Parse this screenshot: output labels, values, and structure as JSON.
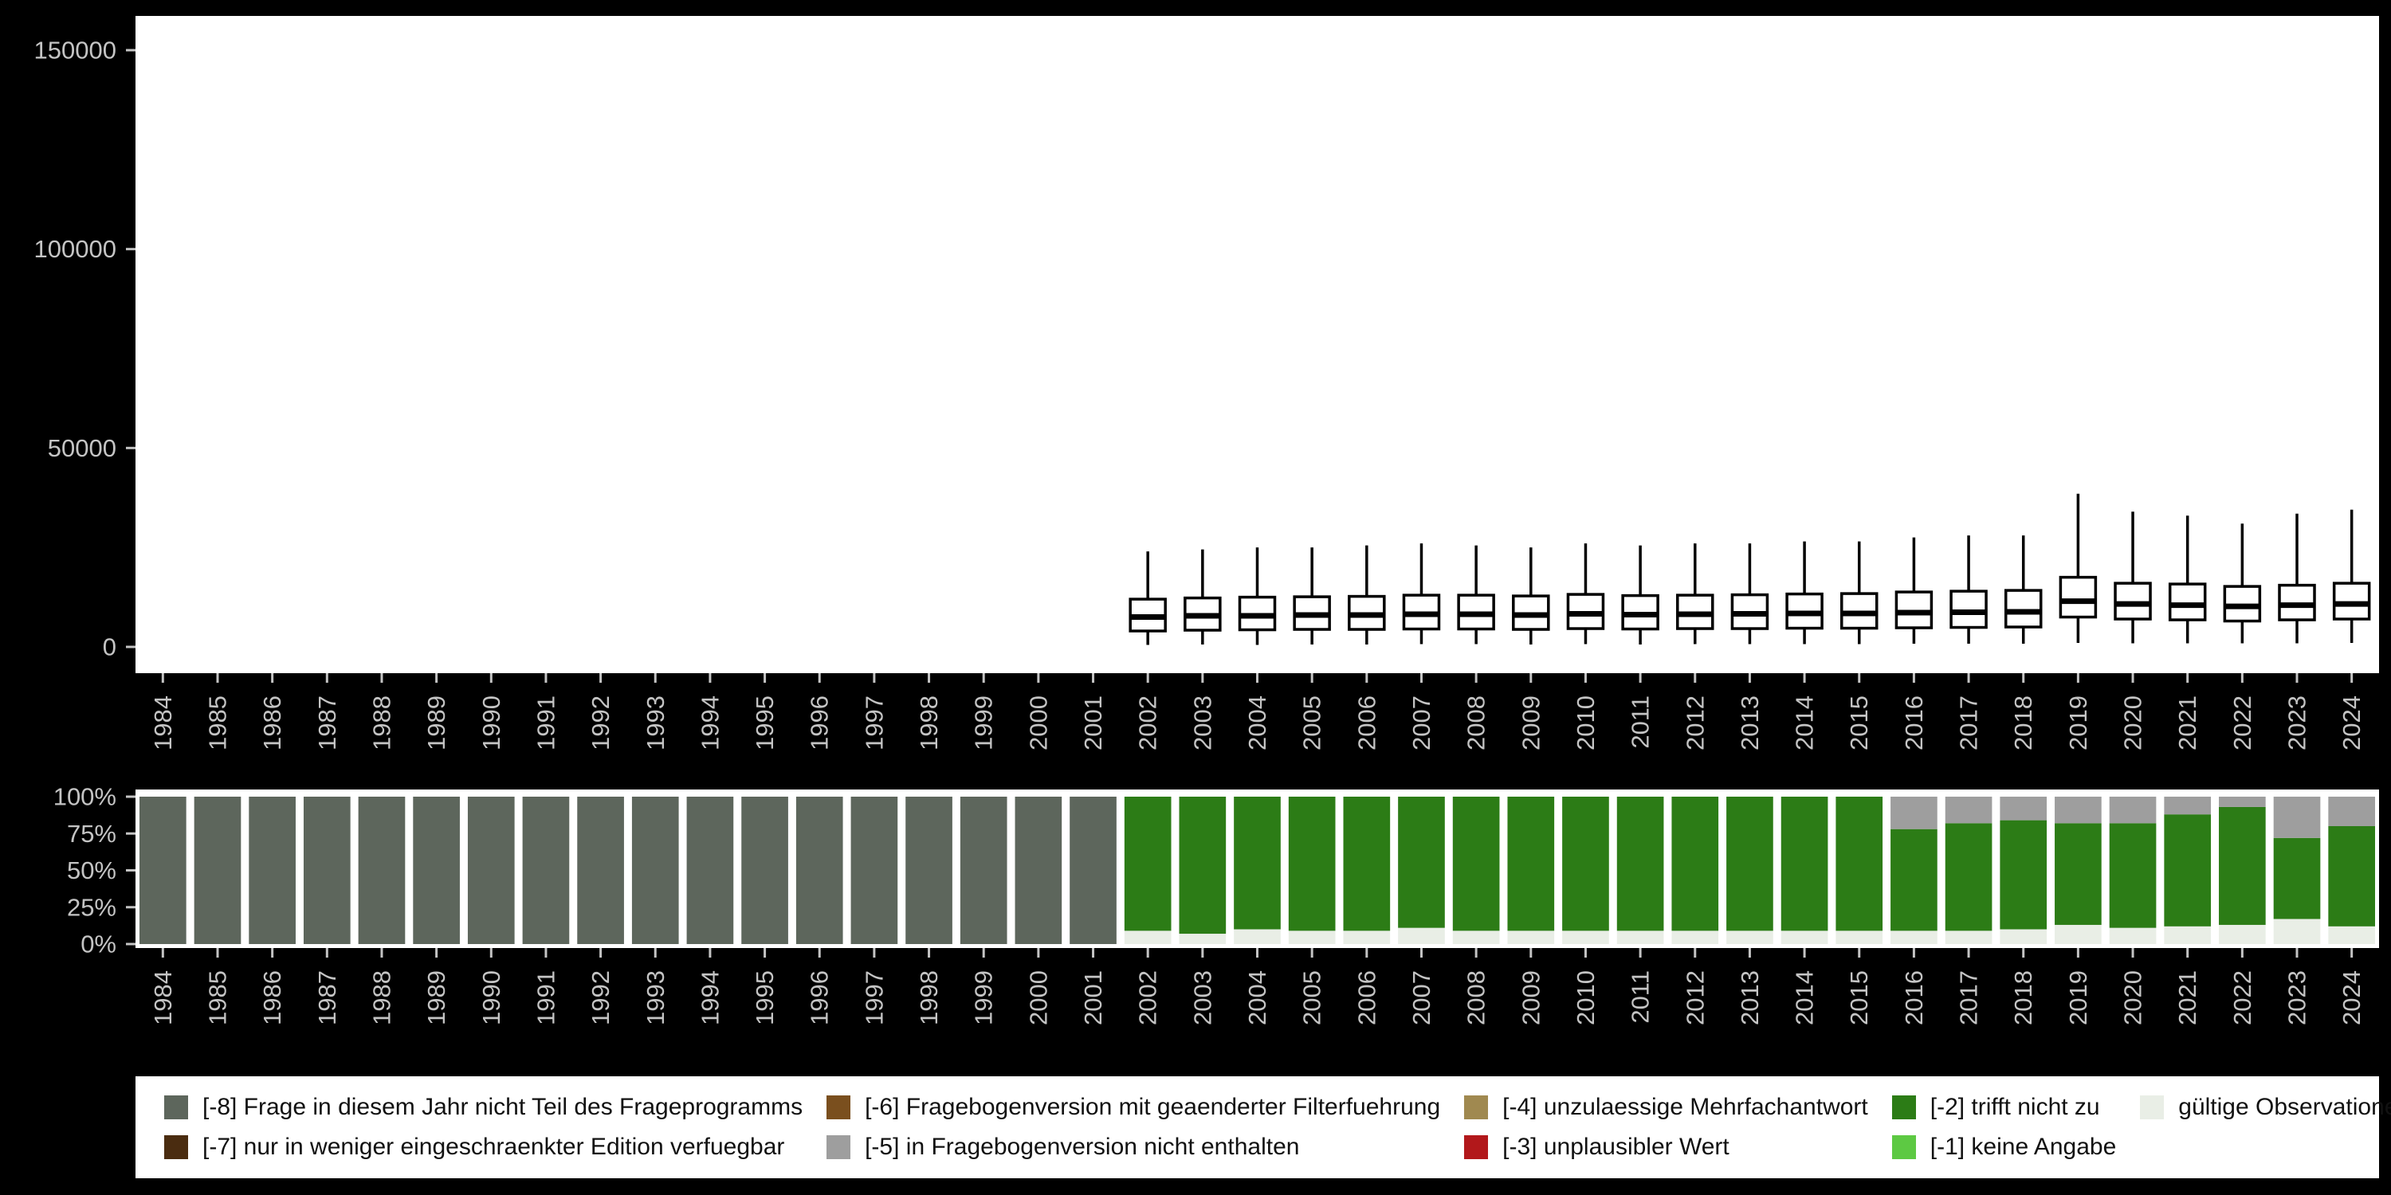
{
  "style": {
    "page_background": "#000000",
    "plot_background": "#ffffff",
    "axis_text_color": "#c4c4c4",
    "box_stroke_color": "#000000",
    "box_fill_color": "#ffffff"
  },
  "chart_data": [
    {
      "type": "boxplot",
      "title": "",
      "xlabel": "",
      "ylabel": "",
      "ylim": [
        0,
        160000
      ],
      "yticks": [
        {
          "value": 0,
          "label": "0"
        },
        {
          "value": 50000,
          "label": "50000"
        },
        {
          "value": 100000,
          "label": "100000"
        },
        {
          "value": 150000,
          "label": "150000"
        }
      ],
      "x": [
        "1984",
        "1985",
        "1986",
        "1987",
        "1988",
        "1989",
        "1990",
        "1991",
        "1992",
        "1993",
        "1994",
        "1995",
        "1996",
        "1997",
        "1998",
        "1999",
        "2000",
        "2001",
        "2002",
        "2003",
        "2004",
        "2005",
        "2006",
        "2007",
        "2008",
        "2009",
        "2010",
        "2011",
        "2012",
        "2013",
        "2014",
        "2015",
        "2016",
        "2017",
        "2018",
        "2019",
        "2020",
        "2021",
        "2022",
        "2023",
        "2024"
      ],
      "boxes": [
        null,
        null,
        null,
        null,
        null,
        null,
        null,
        null,
        null,
        null,
        null,
        null,
        null,
        null,
        null,
        null,
        null,
        null,
        {
          "low": 500,
          "q1": 4000,
          "med": 7500,
          "q3": 12000,
          "high": 24000
        },
        {
          "low": 600,
          "q1": 4200,
          "med": 7800,
          "q3": 12300,
          "high": 24500
        },
        {
          "low": 500,
          "q1": 4300,
          "med": 7800,
          "q3": 12500,
          "high": 25000
        },
        {
          "low": 600,
          "q1": 4400,
          "med": 8000,
          "q3": 12600,
          "high": 25000
        },
        {
          "low": 600,
          "q1": 4400,
          "med": 8000,
          "q3": 12700,
          "high": 25500
        },
        {
          "low": 700,
          "q1": 4500,
          "med": 8200,
          "q3": 13000,
          "high": 26000
        },
        {
          "low": 700,
          "q1": 4500,
          "med": 8200,
          "q3": 13000,
          "high": 25500
        },
        {
          "low": 600,
          "q1": 4400,
          "med": 8000,
          "q3": 12800,
          "high": 25000
        },
        {
          "low": 700,
          "q1": 4600,
          "med": 8300,
          "q3": 13200,
          "high": 26000
        },
        {
          "low": 600,
          "q1": 4500,
          "med": 8100,
          "q3": 12900,
          "high": 25500
        },
        {
          "low": 700,
          "q1": 4600,
          "med": 8200,
          "q3": 13000,
          "high": 26000
        },
        {
          "low": 700,
          "q1": 4600,
          "med": 8300,
          "q3": 13100,
          "high": 26000
        },
        {
          "low": 700,
          "q1": 4700,
          "med": 8400,
          "q3": 13300,
          "high": 26500
        },
        {
          "low": 700,
          "q1": 4700,
          "med": 8400,
          "q3": 13400,
          "high": 26500
        },
        {
          "low": 800,
          "q1": 4800,
          "med": 8600,
          "q3": 13800,
          "high": 27500
        },
        {
          "low": 800,
          "q1": 4900,
          "med": 8700,
          "q3": 14000,
          "high": 28000
        },
        {
          "low": 800,
          "q1": 5000,
          "med": 8800,
          "q3": 14200,
          "high": 28000
        },
        {
          "low": 1000,
          "q1": 7500,
          "med": 11500,
          "q3": 17500,
          "high": 38500
        },
        {
          "low": 900,
          "q1": 7000,
          "med": 10800,
          "q3": 16000,
          "high": 34000
        },
        {
          "low": 900,
          "q1": 6800,
          "med": 10500,
          "q3": 15800,
          "high": 33000
        },
        {
          "low": 900,
          "q1": 6500,
          "med": 10200,
          "q3": 15200,
          "high": 31000
        },
        {
          "low": 900,
          "q1": 6800,
          "med": 10500,
          "q3": 15500,
          "high": 33500
        },
        {
          "low": 1000,
          "q1": 7000,
          "med": 10800,
          "q3": 16000,
          "high": 34500
        }
      ]
    },
    {
      "type": "stacked_bar_percent",
      "title": "",
      "xlabel": "",
      "ylabel": "",
      "ylim": [
        0,
        100
      ],
      "yticks": [
        {
          "value": 0,
          "label": "0%"
        },
        {
          "value": 25,
          "label": "25%"
        },
        {
          "value": 50,
          "label": "50%"
        },
        {
          "value": 75,
          "label": "75%"
        },
        {
          "value": 100,
          "label": "100%"
        }
      ],
      "categories": [
        "1984",
        "1985",
        "1986",
        "1987",
        "1988",
        "1989",
        "1990",
        "1991",
        "1992",
        "1993",
        "1994",
        "1995",
        "1996",
        "1997",
        "1998",
        "1999",
        "2000",
        "2001",
        "2002",
        "2003",
        "2004",
        "2005",
        "2006",
        "2007",
        "2008",
        "2009",
        "2010",
        "2011",
        "2012",
        "2013",
        "2014",
        "2015",
        "2016",
        "2017",
        "2018",
        "2019",
        "2020",
        "2021",
        "2022",
        "2023",
        "2024"
      ],
      "series": [
        {
          "name": "gültige Observationen",
          "color": "#e9eee6",
          "values": [
            0,
            0,
            0,
            0,
            0,
            0,
            0,
            0,
            0,
            0,
            0,
            0,
            0,
            0,
            0,
            0,
            0,
            0,
            9,
            7,
            10,
            9,
            9,
            11,
            9,
            9,
            9,
            9,
            9,
            9,
            9,
            9,
            9,
            9,
            10,
            13,
            11,
            12,
            13,
            17,
            12
          ]
        },
        {
          "name": "[-2] trifft nicht zu",
          "color": "#2c7c16",
          "values": [
            0,
            0,
            0,
            0,
            0,
            0,
            0,
            0,
            0,
            0,
            0,
            0,
            0,
            0,
            0,
            0,
            0,
            0,
            91,
            93,
            90,
            91,
            91,
            89,
            91,
            91,
            91,
            91,
            91,
            91,
            91,
            91,
            69,
            73,
            74,
            69,
            71,
            76,
            80,
            55,
            68
          ]
        },
        {
          "name": "[-5] in Fragebogenversion nicht enthalten",
          "color": "#9e9e9e",
          "values": [
            0,
            0,
            0,
            0,
            0,
            0,
            0,
            0,
            0,
            0,
            0,
            0,
            0,
            0,
            0,
            0,
            0,
            0,
            0,
            0,
            0,
            0,
            0,
            0,
            0,
            0,
            0,
            0,
            0,
            0,
            0,
            0,
            22,
            18,
            16,
            18,
            18,
            12,
            7,
            28,
            20
          ]
        },
        {
          "name": "[-8] Frage in diesem Jahr nicht Teil des Frageprogramms",
          "color": "#5d665c",
          "values": [
            100,
            100,
            100,
            100,
            100,
            100,
            100,
            100,
            100,
            100,
            100,
            100,
            100,
            100,
            100,
            100,
            100,
            100,
            0,
            0,
            0,
            0,
            0,
            0,
            0,
            0,
            0,
            0,
            0,
            0,
            0,
            0,
            0,
            0,
            0,
            0,
            0,
            0,
            0,
            0,
            0
          ]
        }
      ]
    }
  ],
  "legend": {
    "items": [
      {
        "label": "[-8] Frage in diesem Jahr nicht Teil des Frageprogramms",
        "color": "#5d665c"
      },
      {
        "label": "[-7] nur in weniger eingeschraenkter Edition verfuegbar",
        "color": "#4a2c10"
      },
      {
        "label": "[-6] Fragebogenversion mit geaenderter Filterfuehrung",
        "color": "#7a4f1e"
      },
      {
        "label": "[-5] in Fragebogenversion nicht enthalten",
        "color": "#9e9e9e"
      },
      {
        "label": "[-4] unzulaessige Mehrfachantwort",
        "color": "#a08950"
      },
      {
        "label": "[-3] unplausibler Wert",
        "color": "#b2181b"
      },
      {
        "label": "[-2] trifft nicht zu",
        "color": "#2c7c16"
      },
      {
        "label": "[-1] keine Angabe",
        "color": "#5dc943"
      },
      {
        "label": "gültige Observationen",
        "color": "#e9eee6"
      }
    ]
  }
}
